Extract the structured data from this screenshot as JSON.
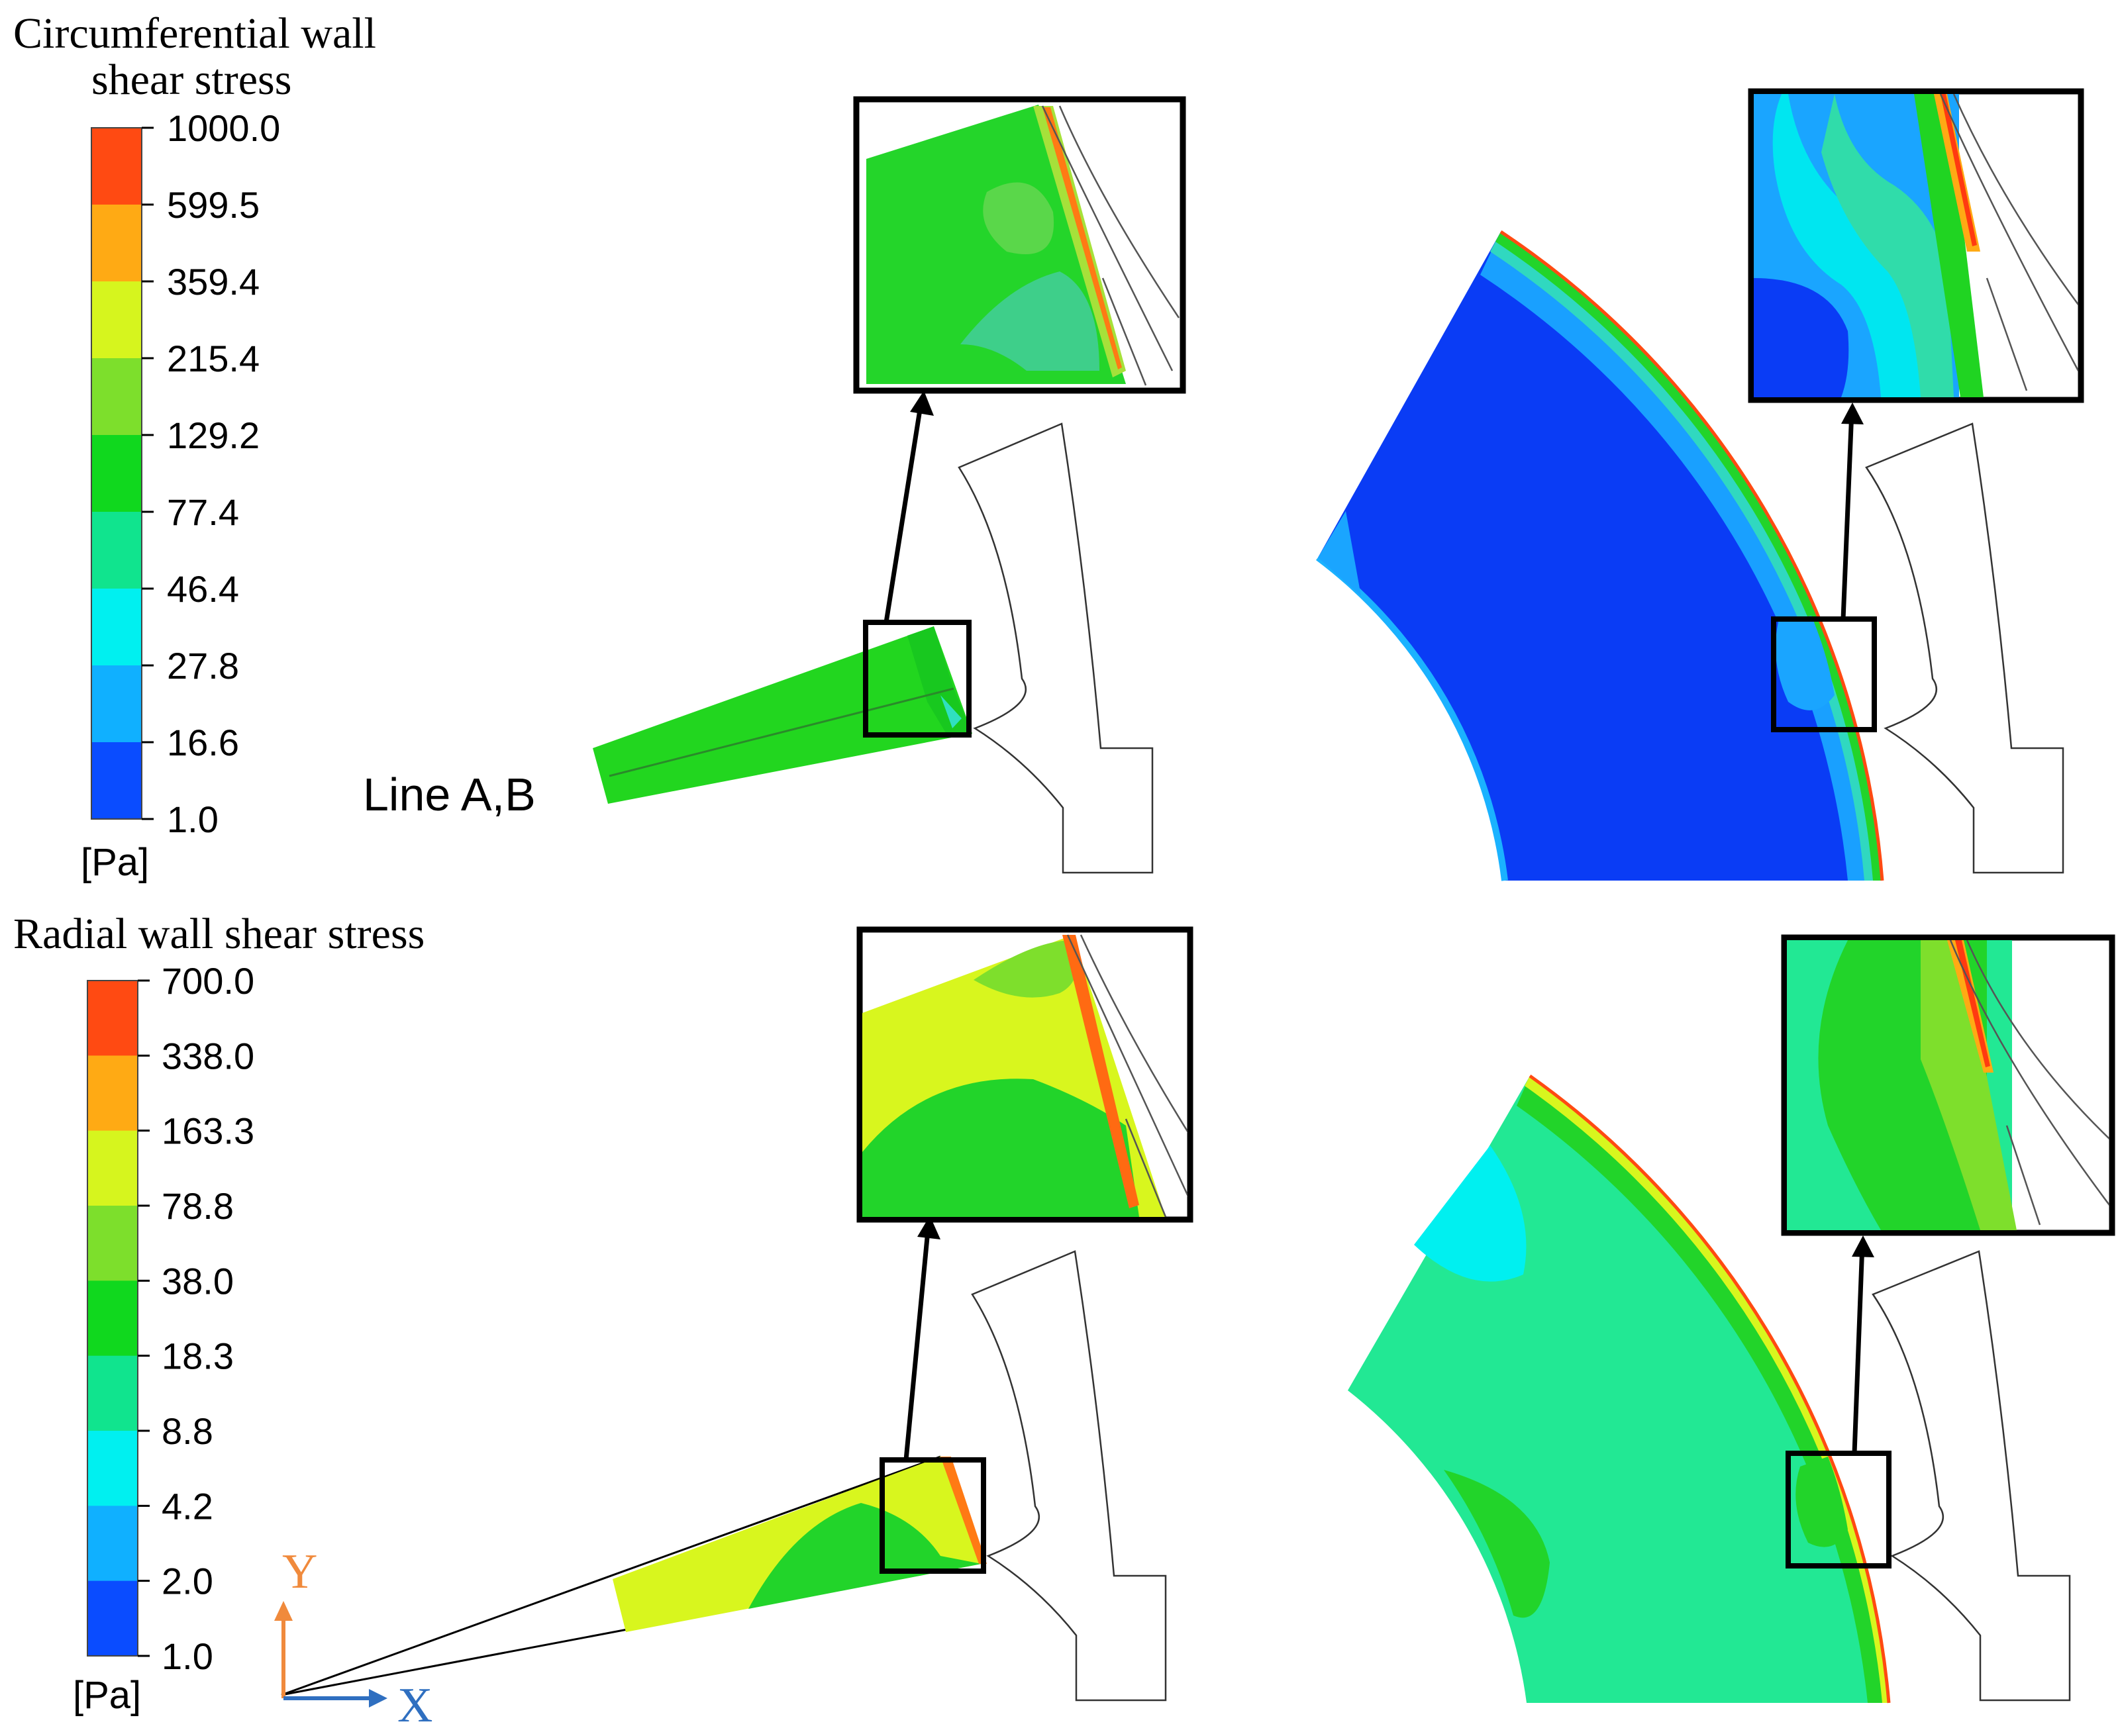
{
  "panels": {
    "top": {
      "title_line1": "Circumferential wall",
      "title_line2": "shear stress",
      "unit": "[Pa]",
      "ticks": [
        "1000.0",
        "599.5",
        "359.4",
        "215.4",
        "129.2",
        "77.4",
        "46.4",
        "27.8",
        "16.6",
        "1.0"
      ],
      "colors": [
        "#ff4a12",
        "#ffaa14",
        "#d6f51e",
        "#7ddf2c",
        "#10d81e",
        "#10e48e",
        "#00f0f0",
        "#10b0ff",
        "#0a4cff"
      ],
      "annotation": "Line A,B"
    },
    "bottom": {
      "title": "Radial wall shear stress",
      "unit": "[Pa]",
      "ticks": [
        "700.0",
        "338.0",
        "163.3",
        "78.8",
        "38.0",
        "18.3",
        "8.8",
        "4.2",
        "2.0",
        "1.0"
      ],
      "colors": [
        "#ff4a12",
        "#ffaa14",
        "#d6f51e",
        "#7ddf2c",
        "#10d81e",
        "#10e48e",
        "#00f0f0",
        "#10b0ff",
        "#0a4cff"
      ]
    }
  },
  "axes": {
    "y_label": "Y",
    "x_label": "X",
    "y_color": "#f08a3c",
    "x_color": "#2f6fc0"
  }
}
